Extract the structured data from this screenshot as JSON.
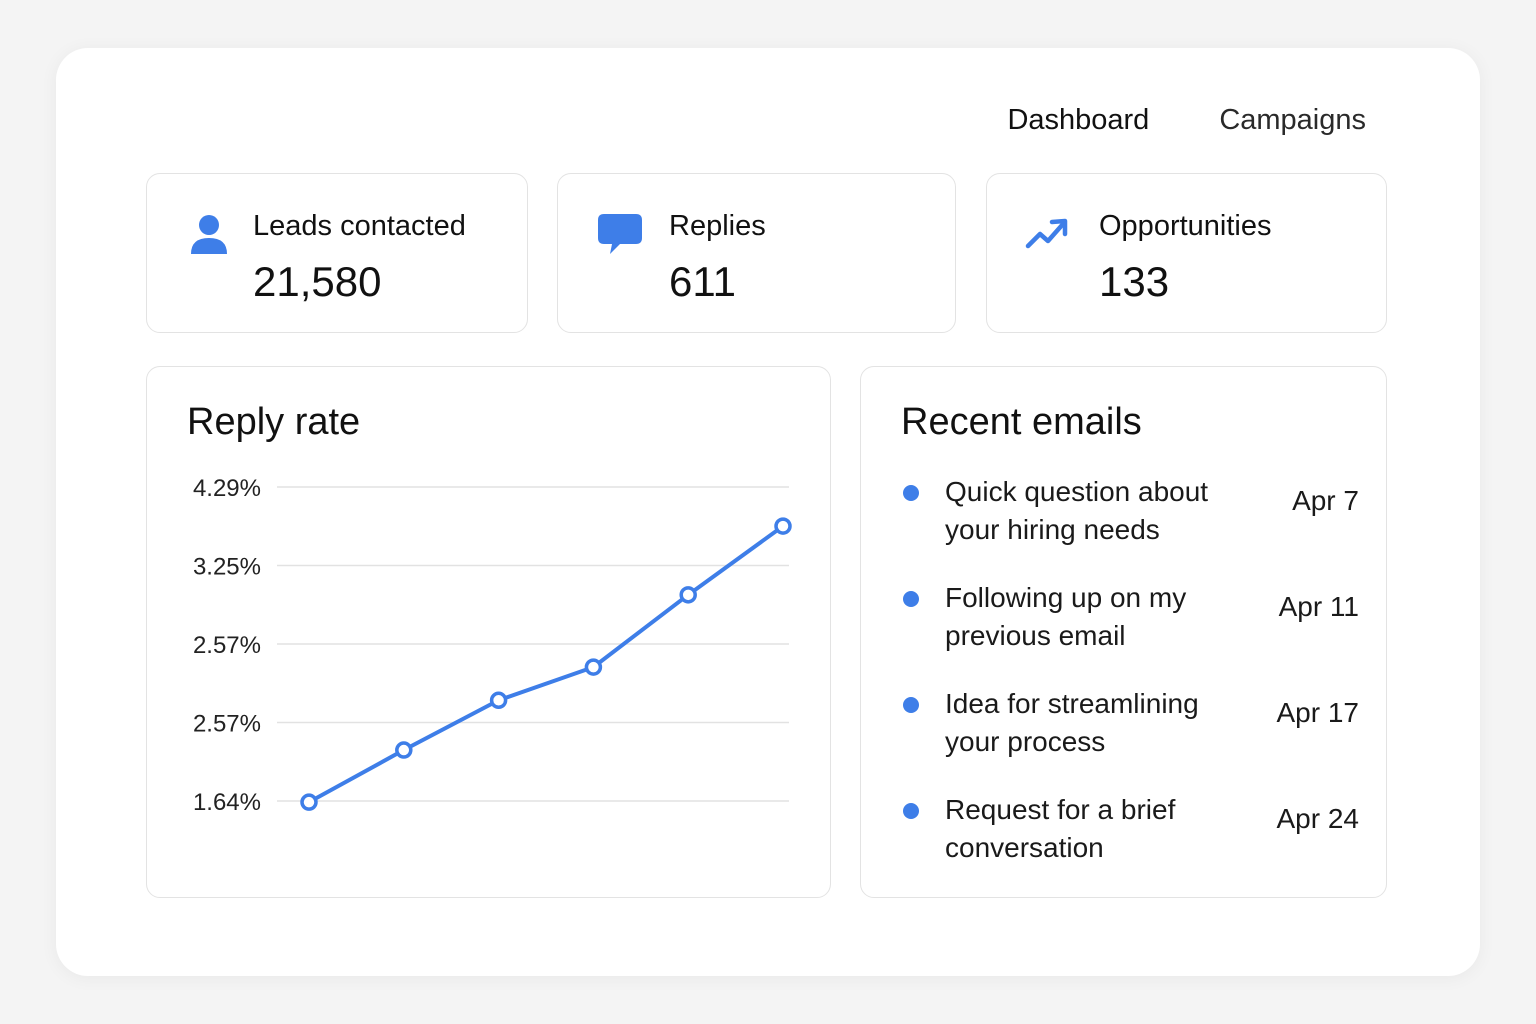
{
  "nav": {
    "items": [
      {
        "label": "Dashboard",
        "active": true
      },
      {
        "label": "Campaigns",
        "active": false
      }
    ]
  },
  "stats": [
    {
      "icon": "user-icon",
      "label": "Leads contacted",
      "value": "21,580"
    },
    {
      "icon": "chat-bubble-icon",
      "label": "Replies",
      "value": "611"
    },
    {
      "icon": "trend-up-icon",
      "label": "Opportunities",
      "value": "133"
    }
  ],
  "accent_color": "#3e7ee8",
  "reply_rate": {
    "title": "Reply rate"
  },
  "chart_data": {
    "type": "line",
    "title": "Reply rate",
    "xlabel": "",
    "ylabel": "",
    "y_tick_labels": [
      "4.29%",
      "3.25%",
      "2.57%",
      "2.57%",
      "1.64%"
    ],
    "ylim": [
      1.64,
      4.29
    ],
    "x": [
      1,
      2,
      3,
      4,
      5,
      6
    ],
    "series": [
      {
        "values": [
          1.63,
          2.07,
          2.49,
          2.77,
          3.38,
          3.96
        ]
      }
    ],
    "grid": true,
    "color": "#3e7ee8"
  },
  "recent_emails": {
    "title": "Recent emails",
    "items": [
      {
        "subject": "Quick question about your hiring needs",
        "date": "Apr 7"
      },
      {
        "subject": "Following up on my previous email",
        "date": "Apr 11"
      },
      {
        "subject": "Idea for streamlining your process",
        "date": "Apr 17"
      },
      {
        "subject": "Request for a brief conversation",
        "date": "Apr 24"
      }
    ]
  }
}
